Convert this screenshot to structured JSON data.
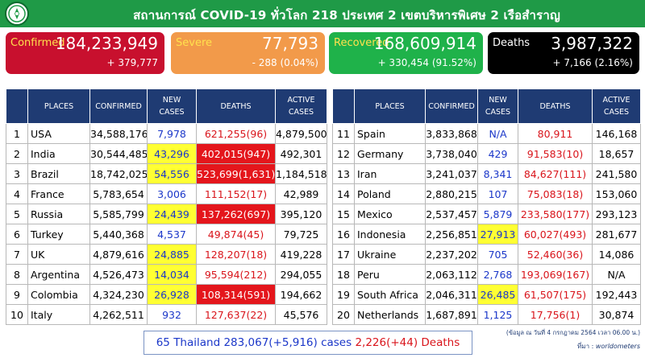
{
  "header": {
    "title": "สถานการณ์ COVID-19 ทั่วโลก 218 ประเทศ 2 เขตบริหารพิเศษ 2 เรือสำราญ"
  },
  "summary": {
    "confirmed": {
      "label": "Confirmed",
      "value": "184,233,949",
      "delta": "+ 379,777"
    },
    "severe": {
      "label": "Severe",
      "value": "77,793",
      "delta": "- 288 (0.04%)"
    },
    "recovered": {
      "label": "Recovered",
      "value": "168,609,914",
      "delta": "+ 330,454 (91.52%)"
    },
    "deaths": {
      "label": "Deaths",
      "value": "3,987,322",
      "delta": "+ 7,166 (2.16%)"
    }
  },
  "table": {
    "headers": {
      "places": "PLACES",
      "confirmed": "CONFIRMED",
      "new_line1": "NEW",
      "new_line2": "CASES",
      "deaths": "DEATHS",
      "active_line1": "ACTIVE",
      "active_line2": "CASES"
    },
    "left": [
      {
        "rank": "1",
        "place": "USA",
        "confirmed": "34,588,176",
        "new": "7,978",
        "new_hl": false,
        "deaths": "621,255(96)",
        "deaths_hl": false,
        "active": "4,879,500"
      },
      {
        "rank": "2",
        "place": "India",
        "confirmed": "30,544,485",
        "new": "43,296",
        "new_hl": true,
        "deaths": "402,015(947)",
        "deaths_hl": true,
        "active": "492,301"
      },
      {
        "rank": "3",
        "place": "Brazil",
        "confirmed": "18,742,025",
        "new": "54,556",
        "new_hl": true,
        "deaths": "523,699(1,631)",
        "deaths_hl": true,
        "active": "1,184,518"
      },
      {
        "rank": "4",
        "place": "France",
        "confirmed": "5,783,654",
        "new": "3,006",
        "new_hl": false,
        "deaths": "111,152(17)",
        "deaths_hl": false,
        "active": "42,989"
      },
      {
        "rank": "5",
        "place": "Russia",
        "confirmed": "5,585,799",
        "new": "24,439",
        "new_hl": true,
        "deaths": "137,262(697)",
        "deaths_hl": true,
        "active": "395,120"
      },
      {
        "rank": "6",
        "place": "Turkey",
        "confirmed": "5,440,368",
        "new": "4,537",
        "new_hl": false,
        "deaths": "49,874(45)",
        "deaths_hl": false,
        "active": "79,725"
      },
      {
        "rank": "7",
        "place": "UK",
        "confirmed": "4,879,616",
        "new": "24,885",
        "new_hl": true,
        "deaths": "128,207(18)",
        "deaths_hl": false,
        "active": "419,228"
      },
      {
        "rank": "8",
        "place": "Argentina",
        "confirmed": "4,526,473",
        "new": "14,034",
        "new_hl": true,
        "deaths": "95,594(212)",
        "deaths_hl": false,
        "active": "294,055"
      },
      {
        "rank": "9",
        "place": "Colombia",
        "confirmed": "4,324,230",
        "new": "26,928",
        "new_hl": true,
        "deaths": "108,314(591)",
        "deaths_hl": true,
        "active": "194,662"
      },
      {
        "rank": "10",
        "place": "Italy",
        "confirmed": "4,262,511",
        "new": "932",
        "new_hl": false,
        "deaths": "127,637(22)",
        "deaths_hl": false,
        "active": "45,576"
      }
    ],
    "right": [
      {
        "rank": "11",
        "place": "Spain",
        "confirmed": "3,833,868",
        "new": "N/A",
        "new_hl": false,
        "deaths": "80,911",
        "deaths_hl": false,
        "active": "146,168"
      },
      {
        "rank": "12",
        "place": "Germany",
        "confirmed": "3,738,040",
        "new": "429",
        "new_hl": false,
        "deaths": "91,583(10)",
        "deaths_hl": false,
        "active": "18,657"
      },
      {
        "rank": "13",
        "place": "Iran",
        "confirmed": "3,241,037",
        "new": "8,341",
        "new_hl": false,
        "deaths": "84,627(111)",
        "deaths_hl": false,
        "active": "241,580"
      },
      {
        "rank": "14",
        "place": "Poland",
        "confirmed": "2,880,215",
        "new": "107",
        "new_hl": false,
        "deaths": "75,083(18)",
        "deaths_hl": false,
        "active": "153,060"
      },
      {
        "rank": "15",
        "place": "Mexico",
        "confirmed": "2,537,457",
        "new": "5,879",
        "new_hl": false,
        "deaths": "233,580(177)",
        "deaths_hl": false,
        "active": "293,123"
      },
      {
        "rank": "16",
        "place": "Indonesia",
        "confirmed": "2,256,851",
        "new": "27,913",
        "new_hl": true,
        "deaths": "60,027(493)",
        "deaths_hl": false,
        "active": "281,677"
      },
      {
        "rank": "17",
        "place": "Ukraine",
        "confirmed": "2,237,202",
        "new": "705",
        "new_hl": false,
        "deaths": "52,460(36)",
        "deaths_hl": false,
        "active": "14,086"
      },
      {
        "rank": "18",
        "place": "Peru",
        "confirmed": "2,063,112",
        "new": "2,768",
        "new_hl": false,
        "deaths": "193,069(167)",
        "deaths_hl": false,
        "active": "N/A"
      },
      {
        "rank": "19",
        "place": "South Africa",
        "confirmed": "2,046,311",
        "new": "26,485",
        "new_hl": true,
        "deaths": "61,507(175)",
        "deaths_hl": false,
        "active": "192,443"
      },
      {
        "rank": "20",
        "place": "Netherlands",
        "confirmed": "1,687,891",
        "new": "1,125",
        "new_hl": false,
        "deaths": "17,756(1)",
        "deaths_hl": false,
        "active": "30,874"
      }
    ]
  },
  "thailand": {
    "rank_place": "65 Thailand",
    "cases": "283,067(+5,916) cases",
    "deaths": "2,226(+44) Deaths"
  },
  "footer": {
    "data_note": "(ข้อมูล ณ วันที่ 4 กรกฎาคม 2564 เวลา 06.00 น.)",
    "source_label": "ที่มา :",
    "source_value": "worldometers"
  },
  "colors": {
    "header": "#1f9a47",
    "confirmed": "#c8102e",
    "severe": "#f29a4a",
    "recovered": "#1fb24a",
    "deaths": "#000000",
    "table_header": "#1f3b73"
  },
  "icons": {
    "logo": "ministry-logo-icon"
  }
}
